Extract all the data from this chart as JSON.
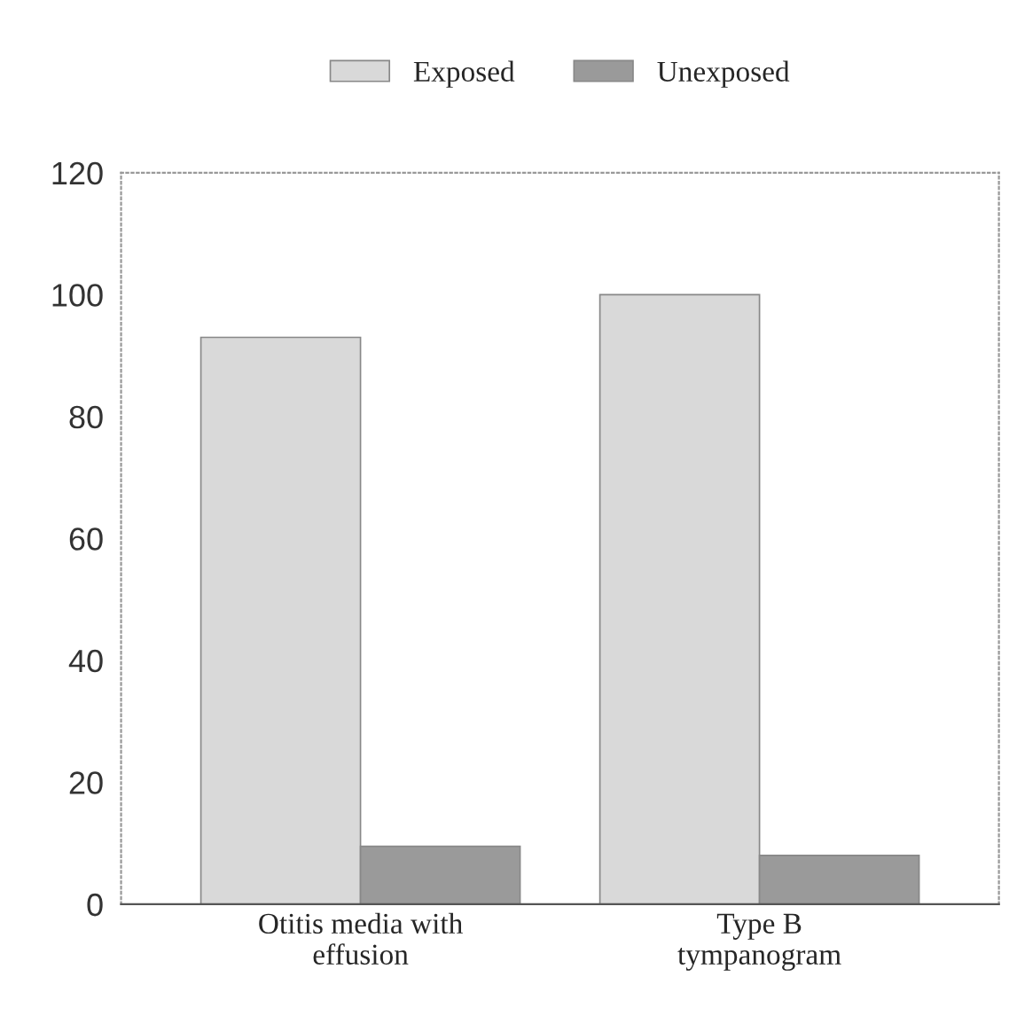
{
  "chart_data": {
    "type": "bar",
    "categories": [
      "Otitis media with\neffusion",
      "Type B\ntympanogram"
    ],
    "series": [
      {
        "name": "Exposed",
        "color": "#d9d9d9",
        "values": [
          93,
          100
        ]
      },
      {
        "name": "Unexposed",
        "color": "#9a9a9a",
        "values": [
          9.5,
          8
        ]
      }
    ],
    "ylim": [
      0,
      120
    ],
    "yticks": [
      0,
      20,
      40,
      60,
      80,
      100,
      120
    ],
    "grid": false,
    "legend": "top"
  }
}
